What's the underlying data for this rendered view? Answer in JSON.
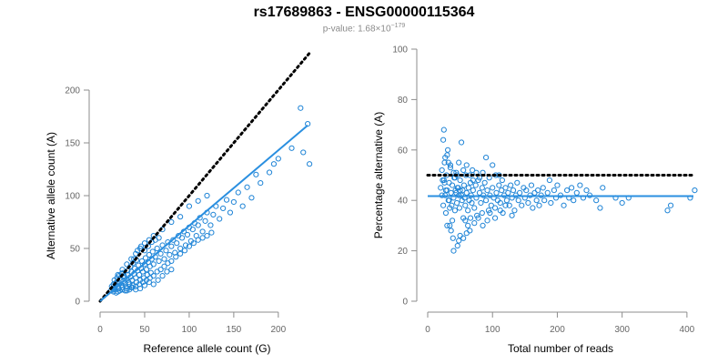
{
  "title": "rs17689863 - ENSG00000115364",
  "subtitle": {
    "prefix": "p-value: 1.68×10",
    "exponent": "−179"
  },
  "colors": {
    "points": "#1f84d6",
    "fit_line": "#2a8fe0",
    "reference_line": "#000000",
    "axis": "#8c8c8c",
    "tick_text": "#666666"
  },
  "chart_data": [
    {
      "type": "scatter",
      "xlabel": "Reference allele count (G)",
      "ylabel": "Alternative allele count (A)",
      "xlim": [
        0,
        240
      ],
      "ylim": [
        0,
        200
      ],
      "xticks": [
        0,
        50,
        100,
        150,
        200
      ],
      "yticks": [
        0,
        50,
        100,
        150,
        200
      ],
      "reference_line": {
        "style": "dotted",
        "intercept": 0,
        "slope": 1,
        "x_range": [
          0,
          235
        ]
      },
      "fit_line": {
        "style": "solid",
        "intercept": 0,
        "slope": 0.715,
        "x_range": [
          0,
          233
        ]
      },
      "points": [
        [
          12,
          10
        ],
        [
          14,
          12
        ],
        [
          15,
          16
        ],
        [
          16,
          13
        ],
        [
          17,
          11
        ],
        [
          18,
          15
        ],
        [
          19,
          18
        ],
        [
          20,
          14
        ],
        [
          21,
          12
        ],
        [
          22,
          17
        ],
        [
          23,
          20
        ],
        [
          24,
          15
        ],
        [
          25,
          13
        ],
        [
          26,
          19
        ],
        [
          27,
          22
        ],
        [
          28,
          17
        ],
        [
          29,
          14
        ],
        [
          30,
          21
        ],
        [
          31,
          25
        ],
        [
          32,
          18
        ],
        [
          33,
          16
        ],
        [
          34,
          23
        ],
        [
          35,
          28
        ],
        [
          36,
          20
        ],
        [
          37,
          15
        ],
        [
          38,
          26
        ],
        [
          39,
          31
        ],
        [
          40,
          22
        ],
        [
          41,
          18
        ],
        [
          42,
          29
        ],
        [
          43,
          34
        ],
        [
          44,
          25
        ],
        [
          45,
          20
        ],
        [
          46,
          31
        ],
        [
          47,
          38
        ],
        [
          48,
          28
        ],
        [
          49,
          22
        ],
        [
          50,
          35
        ],
        [
          51,
          41
        ],
        [
          52,
          30
        ],
        [
          53,
          25
        ],
        [
          54,
          37
        ],
        [
          55,
          44
        ],
        [
          56,
          33
        ],
        [
          57,
          27
        ],
        [
          58,
          40
        ],
        [
          59,
          47
        ],
        [
          60,
          35
        ],
        [
          62,
          42
        ],
        [
          64,
          50
        ],
        [
          66,
          38
        ],
        [
          68,
          45
        ],
        [
          70,
          53
        ],
        [
          72,
          40
        ],
        [
          74,
          48
        ],
        [
          76,
          56
        ],
        [
          78,
          44
        ],
        [
          80,
          52
        ],
        [
          82,
          58
        ],
        [
          84,
          46
        ],
        [
          86,
          55
        ],
        [
          88,
          62
        ],
        [
          90,
          50
        ],
        [
          92,
          60
        ],
        [
          94,
          66
        ],
        [
          96,
          53
        ],
        [
          98,
          63
        ],
        [
          100,
          70
        ],
        [
          102,
          57
        ],
        [
          104,
          68
        ],
        [
          106,
          74
        ],
        [
          108,
          62
        ],
        [
          110,
          72
        ],
        [
          112,
          79
        ],
        [
          115,
          66
        ],
        [
          118,
          76
        ],
        [
          120,
          84
        ],
        [
          124,
          72
        ],
        [
          127,
          82
        ],
        [
          130,
          90
        ],
        [
          134,
          78
        ],
        [
          138,
          88
        ],
        [
          142,
          96
        ],
        [
          146,
          84
        ],
        [
          150,
          94
        ],
        [
          155,
          103
        ],
        [
          160,
          90
        ],
        [
          165,
          108
        ],
        [
          170,
          98
        ],
        [
          175,
          120
        ],
        [
          180,
          112
        ],
        [
          190,
          122
        ],
        [
          195,
          130
        ],
        [
          200,
          135
        ],
        [
          215,
          145
        ],
        [
          225,
          183
        ],
        [
          228,
          141
        ],
        [
          233,
          168
        ],
        [
          235,
          130
        ],
        [
          15,
          9
        ],
        [
          18,
          8
        ],
        [
          20,
          9
        ],
        [
          22,
          10
        ],
        [
          25,
          11
        ],
        [
          28,
          10
        ],
        [
          30,
          12
        ],
        [
          33,
          11
        ],
        [
          36,
          13
        ],
        [
          40,
          14
        ],
        [
          44,
          16
        ],
        [
          48,
          18
        ],
        [
          52,
          20
        ],
        [
          56,
          22
        ],
        [
          60,
          24
        ],
        [
          64,
          28
        ],
        [
          68,
          30
        ],
        [
          72,
          33
        ],
        [
          76,
          36
        ],
        [
          80,
          38
        ],
        [
          85,
          42
        ],
        [
          90,
          45
        ],
        [
          95,
          48
        ],
        [
          100,
          52
        ],
        [
          105,
          55
        ],
        [
          110,
          58
        ],
        [
          115,
          60
        ],
        [
          120,
          62
        ],
        [
          125,
          65
        ],
        [
          20,
          25
        ],
        [
          25,
          30
        ],
        [
          30,
          35
        ],
        [
          35,
          40
        ],
        [
          40,
          45
        ],
        [
          45,
          50
        ],
        [
          50,
          55
        ],
        [
          55,
          58
        ],
        [
          60,
          62
        ],
        [
          70,
          68
        ],
        [
          80,
          75
        ],
        [
          90,
          80
        ],
        [
          100,
          90
        ],
        [
          110,
          95
        ],
        [
          120,
          100
        ],
        [
          45,
          12
        ],
        [
          50,
          15
        ],
        [
          55,
          18
        ],
        [
          60,
          16
        ],
        [
          65,
          20
        ],
        [
          70,
          24
        ],
        [
          75,
          28
        ],
        [
          80,
          30
        ],
        [
          38,
          40
        ],
        [
          42,
          48
        ],
        [
          46,
          52
        ],
        [
          50,
          48
        ],
        [
          54,
          52
        ],
        [
          58,
          56
        ],
        [
          62,
          58
        ],
        [
          66,
          60
        ],
        [
          30,
          10
        ],
        [
          35,
          13
        ],
        [
          40,
          11
        ],
        [
          24,
          26
        ],
        [
          27,
          24
        ],
        [
          31,
          29
        ],
        [
          34,
          33
        ],
        [
          37,
          36
        ],
        [
          41,
          39
        ],
        [
          16,
          20
        ],
        [
          19,
          22
        ],
        [
          13,
          14
        ],
        [
          17,
          17
        ],
        [
          21,
          24
        ],
        [
          26,
          27
        ]
      ]
    },
    {
      "type": "scatter",
      "xlabel": "Total number of reads",
      "ylabel": "Percentage alternative (A)",
      "xlim": [
        0,
        410
      ],
      "ylim": [
        0,
        100
      ],
      "xticks": [
        0,
        100,
        200,
        300,
        400
      ],
      "yticks": [
        0,
        20,
        40,
        60,
        80,
        100
      ],
      "reference_line": {
        "style": "dotted",
        "y": 50,
        "x_range": [
          0,
          410
        ]
      },
      "fit_line": {
        "style": "solid",
        "y": 41.7,
        "x_range": [
          0,
          410
        ]
      },
      "points": [
        [
          20,
          45
        ],
        [
          22,
          52
        ],
        [
          24,
          38
        ],
        [
          25,
          48
        ],
        [
          26,
          55
        ],
        [
          27,
          42
        ],
        [
          28,
          35
        ],
        [
          29,
          50
        ],
        [
          30,
          44
        ],
        [
          31,
          60
        ],
        [
          32,
          40
        ],
        [
          33,
          47
        ],
        [
          34,
          30
        ],
        [
          35,
          53
        ],
        [
          36,
          43
        ],
        [
          37,
          38
        ],
        [
          38,
          46
        ],
        [
          39,
          25
        ],
        [
          40,
          41
        ],
        [
          41,
          49
        ],
        [
          42,
          36
        ],
        [
          43,
          44
        ],
        [
          44,
          51
        ],
        [
          45,
          39
        ],
        [
          46,
          22
        ],
        [
          47,
          45
        ],
        [
          48,
          42
        ],
        [
          49,
          37
        ],
        [
          50,
          48
        ],
        [
          52,
          63
        ],
        [
          53,
          40
        ],
        [
          54,
          44
        ],
        [
          55,
          33
        ],
        [
          56,
          46
        ],
        [
          57,
          41
        ],
        [
          58,
          38
        ],
        [
          59,
          50
        ],
        [
          60,
          43
        ],
        [
          62,
          36
        ],
        [
          63,
          45
        ],
        [
          64,
          40
        ],
        [
          65,
          28
        ],
        [
          66,
          47
        ],
        [
          67,
          42
        ],
        [
          68,
          39
        ],
        [
          69,
          52
        ],
        [
          70,
          44
        ],
        [
          72,
          37
        ],
        [
          74,
          46
        ],
        [
          75,
          41
        ],
        [
          76,
          34
        ],
        [
          78,
          48
        ],
        [
          80,
          43
        ],
        [
          82,
          39
        ],
        [
          84,
          45
        ],
        [
          85,
          30
        ],
        [
          86,
          42
        ],
        [
          88,
          47
        ],
        [
          90,
          40
        ],
        [
          92,
          44
        ],
        [
          94,
          36
        ],
        [
          95,
          49
        ],
        [
          96,
          42
        ],
        [
          98,
          38
        ],
        [
          100,
          45
        ],
        [
          102,
          41
        ],
        [
          104,
          37
        ],
        [
          105,
          50
        ],
        [
          106,
          43
        ],
        [
          108,
          40
        ],
        [
          110,
          46
        ],
        [
          112,
          39
        ],
        [
          114,
          44
        ],
        [
          115,
          48
        ],
        [
          116,
          35
        ],
        [
          118,
          42
        ],
        [
          120,
          45
        ],
        [
          122,
          40
        ],
        [
          124,
          43
        ],
        [
          126,
          38
        ],
        [
          128,
          46
        ],
        [
          130,
          41
        ],
        [
          132,
          44
        ],
        [
          134,
          36
        ],
        [
          136,
          42
        ],
        [
          138,
          47
        ],
        [
          140,
          40
        ],
        [
          142,
          43
        ],
        [
          145,
          38
        ],
        [
          148,
          45
        ],
        [
          150,
          41
        ],
        [
          152,
          44
        ],
        [
          155,
          39
        ],
        [
          158,
          42
        ],
        [
          160,
          46
        ],
        [
          162,
          37
        ],
        [
          165,
          43
        ],
        [
          168,
          40
        ],
        [
          170,
          44
        ],
        [
          172,
          38
        ],
        [
          175,
          42
        ],
        [
          178,
          45
        ],
        [
          180,
          40
        ],
        [
          185,
          43
        ],
        [
          188,
          48
        ],
        [
          190,
          39
        ],
        [
          195,
          44
        ],
        [
          198,
          41
        ],
        [
          200,
          46
        ],
        [
          205,
          42
        ],
        [
          210,
          38
        ],
        [
          215,
          44
        ],
        [
          218,
          41
        ],
        [
          222,
          45
        ],
        [
          225,
          40
        ],
        [
          230,
          43
        ],
        [
          235,
          46
        ],
        [
          240,
          41
        ],
        [
          245,
          44
        ],
        [
          250,
          42
        ],
        [
          260,
          40
        ],
        [
          266,
          37
        ],
        [
          270,
          45
        ],
        [
          290,
          41
        ],
        [
          300,
          39
        ],
        [
          310,
          41
        ],
        [
          370,
          36
        ],
        [
          375,
          38
        ],
        [
          405,
          41
        ],
        [
          412,
          44
        ],
        [
          24,
          64
        ],
        [
          25,
          68
        ],
        [
          27,
          57
        ],
        [
          30,
          58
        ],
        [
          32,
          55
        ],
        [
          35,
          54
        ],
        [
          40,
          51
        ],
        [
          42,
          49
        ],
        [
          45,
          50
        ],
        [
          48,
          55
        ],
        [
          55,
          52
        ],
        [
          60,
          54
        ],
        [
          65,
          50
        ],
        [
          70,
          48
        ],
        [
          75,
          51
        ],
        [
          80,
          49
        ],
        [
          85,
          51
        ],
        [
          90,
          57
        ],
        [
          100,
          54
        ],
        [
          110,
          50
        ],
        [
          55,
          25
        ],
        [
          60,
          27
        ],
        [
          62,
          30
        ],
        [
          48,
          24
        ],
        [
          50,
          26
        ],
        [
          36,
          28
        ],
        [
          38,
          32
        ],
        [
          40,
          20
        ],
        [
          30,
          30
        ],
        [
          58,
          32
        ],
        [
          66,
          33
        ],
        [
          72,
          31
        ],
        [
          78,
          33
        ],
        [
          84,
          35
        ],
        [
          92,
          32
        ],
        [
          96,
          35
        ],
        [
          104,
          33
        ],
        [
          112,
          36
        ],
        [
          120,
          38
        ],
        [
          130,
          34
        ],
        [
          22,
          42
        ],
        [
          23,
          48
        ],
        [
          26,
          47
        ],
        [
          28,
          44
        ],
        [
          33,
          40
        ],
        [
          34,
          37
        ],
        [
          44,
          43
        ],
        [
          46,
          45
        ],
        [
          50,
          44
        ],
        [
          52,
          42
        ]
      ]
    }
  ]
}
